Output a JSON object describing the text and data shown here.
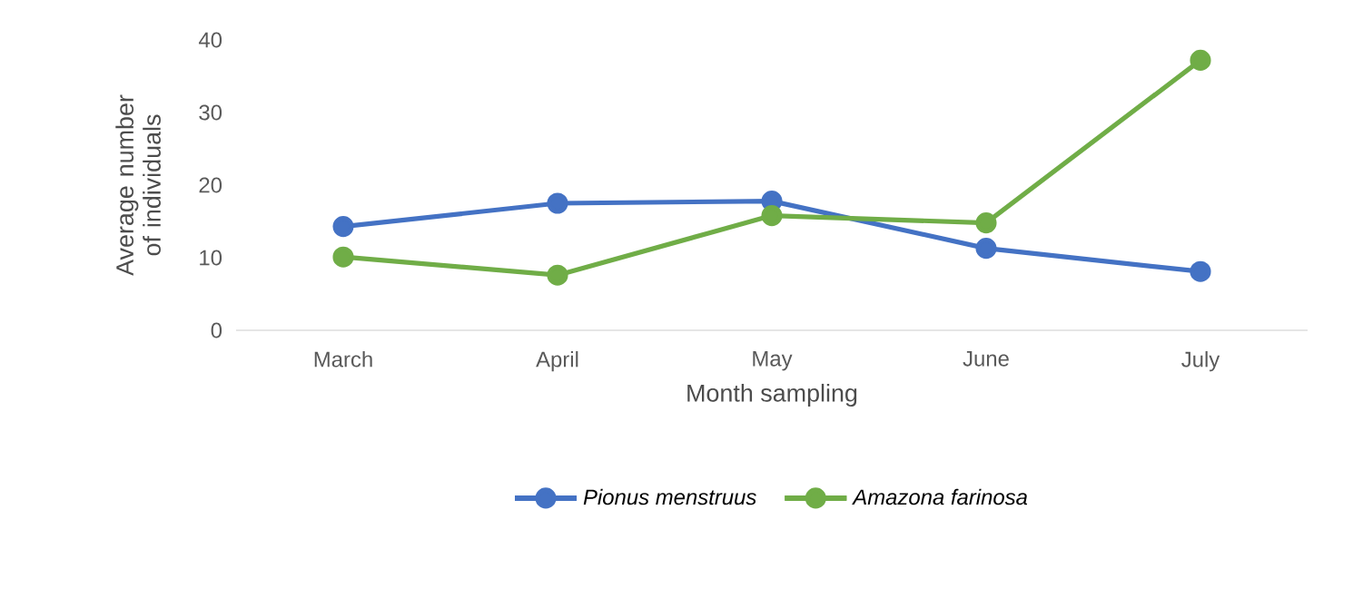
{
  "chart_data": {
    "type": "line",
    "xlabel": "Month sampling",
    "ylabel": "Average number of individuals",
    "categories": [
      "March",
      "April",
      "May",
      "June",
      "July"
    ],
    "series": [
      {
        "name": "Pionus menstruus",
        "color": "#4472c4",
        "values": [
          14.3,
          17.5,
          17.8,
          11.3,
          8.1
        ]
      },
      {
        "name": "Amazona farinosa",
        "color": "#70ad47",
        "values": [
          10.1,
          7.6,
          15.8,
          14.8,
          37.2
        ]
      }
    ],
    "ylim": [
      0,
      40
    ],
    "yticks": [
      0,
      10,
      20,
      30,
      40
    ],
    "legend": "bottom",
    "marker": "circle",
    "line_style": "solid"
  }
}
